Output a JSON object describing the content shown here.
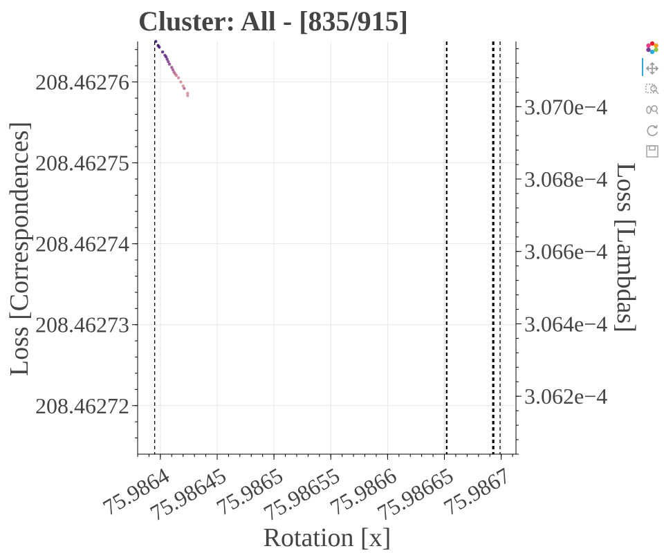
{
  "chart_data": {
    "type": "scatter",
    "title": "Cluster: All - [835/915]",
    "xlabel": "Rotation [x]",
    "ylabel": "Loss [Correspondences]",
    "y2label": "Loss [Lambdas]",
    "xlim": [
      75.98638,
      75.986713
    ],
    "ylim": [
      208.462714,
      208.462765
    ],
    "y2lim": [
      0.00030604,
      0.00030718
    ],
    "x_ticks": [
      "75.9864",
      "75.98645",
      "75.9865",
      "75.98655",
      "75.9866",
      "75.98665",
      "75.9867"
    ],
    "x_tick_values": [
      75.9864,
      75.98645,
      75.9865,
      75.98655,
      75.9866,
      75.98665,
      75.9867
    ],
    "y_ticks": [
      "208.46272",
      "208.46273",
      "208.46274",
      "208.46275",
      "208.46276"
    ],
    "y_tick_values": [
      208.46272,
      208.46273,
      208.46274,
      208.46275,
      208.46276
    ],
    "y2_ticks": [
      "3.062e−4",
      "3.064e−4",
      "3.066e−4",
      "3.068e−4",
      "3.070e−4"
    ],
    "y2_tick_values": [
      0.0003062,
      0.0003064,
      0.0003066,
      0.0003068,
      0.000307
    ],
    "grid": true,
    "vlines": [
      {
        "x": 75.986395,
        "style": "dashed",
        "weight": "thin"
      },
      {
        "x": 75.986652,
        "style": "dashed",
        "weight": "medium"
      },
      {
        "x": 75.986693,
        "style": "dashed",
        "weight": "thick"
      },
      {
        "x": 75.986699,
        "style": "dashed",
        "weight": "thin"
      }
    ],
    "points": [
      {
        "x": 75.986396,
        "y": 208.462765,
        "color": "#2b0b5e"
      },
      {
        "x": 75.986398,
        "y": 208.4627645,
        "color": "#2b0b5e"
      },
      {
        "x": 75.986399,
        "y": 208.4627643,
        "color": "#3a0f6e"
      },
      {
        "x": 75.986402,
        "y": 208.4627637,
        "color": "#4b1a7a"
      },
      {
        "x": 75.986404,
        "y": 208.4627633,
        "color": "#6a2a80"
      },
      {
        "x": 75.986405,
        "y": 208.4627631,
        "color": "#5a1f7e"
      },
      {
        "x": 75.986406,
        "y": 208.4627628,
        "color": "#6b2c86"
      },
      {
        "x": 75.986407,
        "y": 208.4627625,
        "color": "#7a3588"
      },
      {
        "x": 75.986408,
        "y": 208.4627622,
        "color": "#8a3c8a"
      },
      {
        "x": 75.98641,
        "y": 208.4627618,
        "color": "#9a4688"
      },
      {
        "x": 75.986411,
        "y": 208.4627615,
        "color": "#a35090"
      },
      {
        "x": 75.986412,
        "y": 208.4627612,
        "color": "#b05e8e"
      },
      {
        "x": 75.986413,
        "y": 208.462761,
        "color": "#bd6c8c"
      },
      {
        "x": 75.986414,
        "y": 208.4627608,
        "color": "#c87a90"
      },
      {
        "x": 75.986416,
        "y": 208.4627605,
        "color": "#c4809a"
      },
      {
        "x": 75.986418,
        "y": 208.46276,
        "color": "#d48a8a"
      },
      {
        "x": 75.98642,
        "y": 208.4627595,
        "color": "#cf8e96"
      },
      {
        "x": 75.986421,
        "y": 208.4627592,
        "color": "#b5619a"
      },
      {
        "x": 75.986424,
        "y": 208.4627586,
        "color": "#d09090"
      },
      {
        "x": 75.986424,
        "y": 208.4627583,
        "color": "#c9909c"
      }
    ]
  },
  "toolbar": {
    "icons": [
      "bokeh-logo-icon",
      "pan-icon",
      "box-zoom-icon",
      "wheel-zoom-icon",
      "reset-icon",
      "save-icon"
    ]
  }
}
